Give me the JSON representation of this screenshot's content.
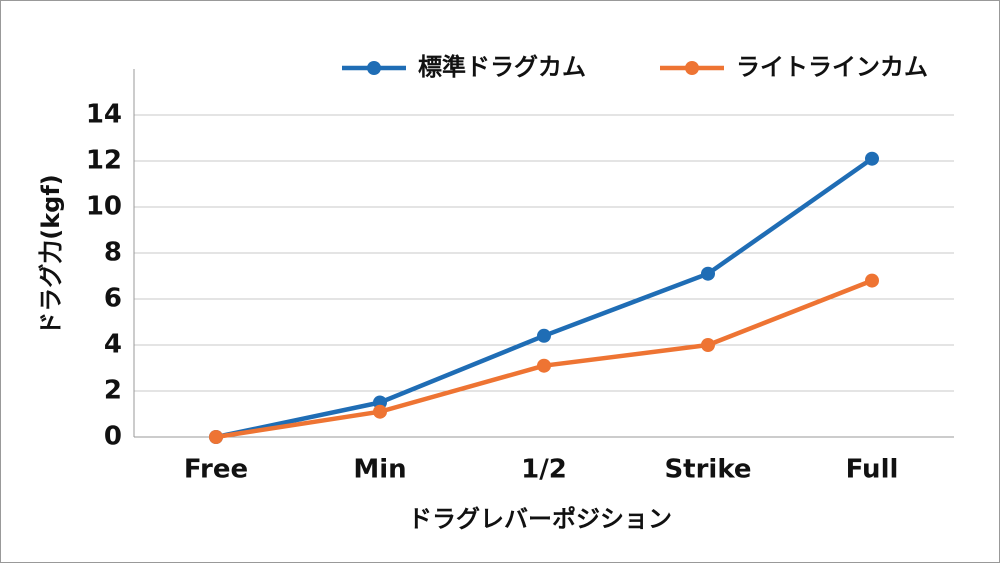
{
  "chart_data": {
    "type": "line",
    "x_label": "ドラグレバーポジション",
    "y_label": "ドラグ力(kgf)",
    "categories": [
      "Free",
      "Min",
      "1/2",
      "Strike",
      "Full"
    ],
    "series": [
      {
        "name": "標準ドラグカム",
        "color": "#1f6db5",
        "values": [
          0,
          1.5,
          4.4,
          7.1,
          12.1
        ]
      },
      {
        "name": "ライトラインカム",
        "color": "#ee7433",
        "values": [
          0,
          1.1,
          3.1,
          4.0,
          6.8
        ]
      }
    ],
    "ylim": [
      0,
      16
    ],
    "yticks": [
      0,
      2,
      4,
      6,
      8,
      10,
      12,
      14
    ],
    "grid": true,
    "legend": "top-right"
  }
}
